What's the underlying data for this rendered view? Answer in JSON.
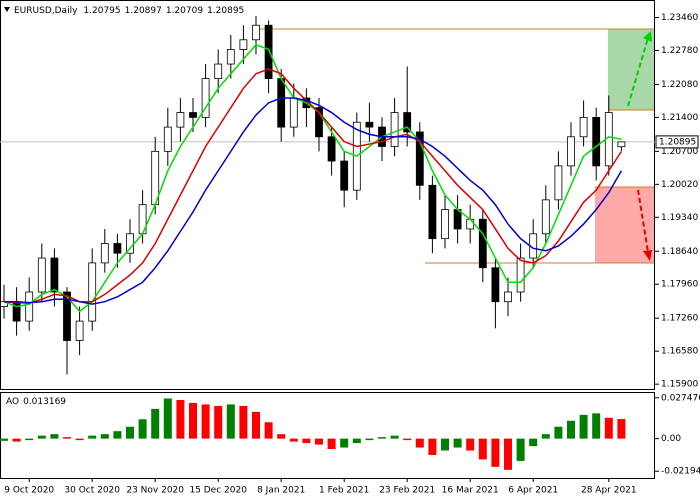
{
  "chart_data": [
    {
      "type": "candlestick",
      "title": "EURUSD,Daily",
      "categories": [
        null,
        null,
        "9 Oct 2020",
        null,
        null,
        null,
        null,
        "30 Oct 2020",
        null,
        null,
        null,
        null,
        "23 Nov 2020",
        null,
        null,
        null,
        null,
        "15 Dec 2020",
        null,
        null,
        null,
        null,
        "8 Jan 2021",
        null,
        null,
        null,
        null,
        "1 Feb 2021",
        null,
        null,
        null,
        null,
        "23 Feb 2021",
        null,
        null,
        null,
        null,
        "16 Mar 2021",
        null,
        null,
        null,
        null,
        "6 Apr 2021",
        null,
        null,
        null,
        null,
        null,
        "28 Apr 2021",
        null
      ],
      "open": [
        1.175,
        1.176,
        1.172,
        1.178,
        1.185,
        1.178,
        1.168,
        1.172,
        1.184,
        1.188,
        1.186,
        1.19,
        1.196,
        1.207,
        1.212,
        1.215,
        1.214,
        1.222,
        1.225,
        1.228,
        1.23,
        1.233,
        1.222,
        1.212,
        1.218,
        1.216,
        1.21,
        1.205,
        1.199,
        1.213,
        1.212,
        1.208,
        1.215,
        1.211,
        1.2,
        1.189,
        1.195,
        1.191,
        1.193,
        1.183,
        1.176,
        1.178,
        1.185,
        1.19,
        1.197,
        1.204,
        1.21,
        1.214,
        1.204,
        1.20795
      ],
      "high": [
        1.1795,
        1.179,
        1.181,
        1.188,
        1.187,
        1.179,
        1.175,
        1.187,
        1.191,
        1.19,
        1.193,
        1.199,
        1.21,
        1.216,
        1.218,
        1.218,
        1.225,
        1.228,
        1.231,
        1.233,
        1.2349,
        1.234,
        1.224,
        1.221,
        1.22,
        1.218,
        1.212,
        1.207,
        1.215,
        1.217,
        1.214,
        1.218,
        1.2245,
        1.213,
        1.202,
        1.198,
        1.198,
        1.196,
        1.195,
        1.185,
        1.181,
        1.188,
        1.193,
        1.2,
        1.207,
        1.213,
        1.2175,
        1.216,
        1.2185,
        1.20897
      ],
      "low": [
        1.1725,
        1.169,
        1.17,
        1.176,
        1.175,
        1.161,
        1.165,
        1.17,
        1.182,
        1.183,
        1.184,
        1.188,
        1.194,
        1.204,
        1.209,
        1.211,
        1.212,
        1.219,
        1.222,
        1.225,
        1.227,
        1.219,
        1.209,
        1.21,
        1.212,
        1.207,
        1.202,
        1.1955,
        1.197,
        1.209,
        1.205,
        1.206,
        1.208,
        1.197,
        1.186,
        1.187,
        1.188,
        1.188,
        1.18,
        1.1705,
        1.173,
        1.176,
        1.183,
        1.188,
        1.195,
        1.202,
        1.208,
        1.201,
        1.202,
        1.20709
      ],
      "close": [
        1.176,
        1.172,
        1.178,
        1.185,
        1.178,
        1.168,
        1.172,
        1.184,
        1.188,
        1.186,
        1.19,
        1.196,
        1.207,
        1.212,
        1.215,
        1.214,
        1.222,
        1.225,
        1.228,
        1.23,
        1.233,
        1.222,
        1.212,
        1.218,
        1.216,
        1.21,
        1.205,
        1.199,
        1.213,
        1.212,
        1.208,
        1.215,
        1.211,
        1.2,
        1.189,
        1.195,
        1.191,
        1.193,
        1.183,
        1.176,
        1.178,
        1.185,
        1.19,
        1.197,
        1.204,
        1.21,
        1.214,
        1.204,
        1.215,
        1.20895
      ],
      "overlays": [
        {
          "color": "#00e000",
          "values": [
            1.176,
            1.175,
            1.1755,
            1.1775,
            1.1785,
            1.177,
            1.174,
            1.176,
            1.18,
            1.184,
            1.187,
            1.19,
            1.196,
            1.203,
            1.208,
            1.212,
            1.216,
            1.22,
            1.223,
            1.226,
            1.229,
            1.228,
            1.222,
            1.218,
            1.217,
            1.215,
            1.211,
            1.207,
            1.206,
            1.208,
            1.21,
            1.211,
            1.212,
            1.209,
            1.203,
            1.198,
            1.195,
            1.193,
            1.19,
            1.185,
            1.18,
            1.18,
            1.183,
            1.188,
            1.194,
            1.2,
            1.206,
            1.208,
            1.21,
            1.2095
          ]
        },
        {
          "color": "#e00000",
          "values": [
            1.176,
            1.1758,
            1.1757,
            1.1765,
            1.1775,
            1.1772,
            1.176,
            1.176,
            1.1775,
            1.1795,
            1.1815,
            1.184,
            1.188,
            1.193,
            1.198,
            1.203,
            1.208,
            1.212,
            1.216,
            1.22,
            1.223,
            1.224,
            1.223,
            1.22,
            1.2175,
            1.215,
            1.212,
            1.209,
            1.208,
            1.2085,
            1.209,
            1.21,
            1.2105,
            1.209,
            1.206,
            1.203,
            1.2,
            1.1975,
            1.195,
            1.191,
            1.187,
            1.1845,
            1.184,
            1.1855,
            1.1885,
            1.1925,
            1.1965,
            1.199,
            1.203,
            1.207
          ]
        },
        {
          "color": "#0000d0",
          "values": [
            1.176,
            1.176,
            1.1758,
            1.176,
            1.1765,
            1.1765,
            1.176,
            1.1755,
            1.176,
            1.177,
            1.1785,
            1.18,
            1.183,
            1.1865,
            1.1905,
            1.1945,
            1.199,
            1.203,
            1.207,
            1.211,
            1.2145,
            1.217,
            1.218,
            1.218,
            1.2175,
            1.2165,
            1.215,
            1.213,
            1.2115,
            1.2105,
            1.21,
            1.21,
            1.21,
            1.2095,
            1.208,
            1.206,
            1.2035,
            1.201,
            1.199,
            1.196,
            1.192,
            1.189,
            1.187,
            1.1865,
            1.1875,
            1.1895,
            1.192,
            1.195,
            1.1985,
            1.203
          ]
        }
      ],
      "up_color": "#ffffff",
      "down_color": "#000000",
      "ylim": [
        1.158,
        1.238
      ],
      "yticks": [
        {
          "value": 1.2346,
          "label": "1.23460"
        },
        {
          "value": 1.2278,
          "label": "1.22780"
        },
        {
          "value": 1.2208,
          "label": "1.22080"
        },
        {
          "value": 1.214,
          "label": "1.21400"
        },
        {
          "value": 1.207,
          "label": "1.20700"
        },
        {
          "value": 1.2002,
          "label": "1.20020"
        },
        {
          "value": 1.1934,
          "label": "1.19340"
        },
        {
          "value": 1.1864,
          "label": "1.18640"
        },
        {
          "value": 1.1796,
          "label": "1.17960"
        },
        {
          "value": 1.1726,
          "label": "1.17260"
        },
        {
          "value": 1.1658,
          "label": "1.16580"
        },
        {
          "value": 1.159,
          "label": "1.15900"
        }
      ],
      "grid": false
    },
    {
      "type": "bar",
      "title": "AO",
      "values": [
        -0.0015,
        -0.002,
        -0.001,
        0.002,
        0.003,
        0.001,
        -0.001,
        0.002,
        0.003,
        0.005,
        0.008,
        0.013,
        0.02,
        0.027,
        0.026,
        0.024,
        0.023,
        0.022,
        0.023,
        0.022,
        0.018,
        0.011,
        0.003,
        -0.002,
        -0.003,
        -0.004,
        -0.007,
        -0.006,
        -0.003,
        -0.001,
        0.001,
        0.002,
        -0.001,
        -0.006,
        -0.011,
        -0.008,
        -0.006,
        -0.008,
        -0.014,
        -0.019,
        -0.021,
        -0.015,
        -0.005,
        0.003,
        0.008,
        0.012,
        0.016,
        0.017,
        0.014,
        0.013169
      ],
      "up_color": "#008000",
      "down_color": "#ff0000",
      "ylim": [
        -0.0265,
        0.0307
      ],
      "yticks": [
        0.027476,
        {
          "value": 0,
          "label": "0.00"
        },
        -0.021944
      ]
    }
  ]
}
